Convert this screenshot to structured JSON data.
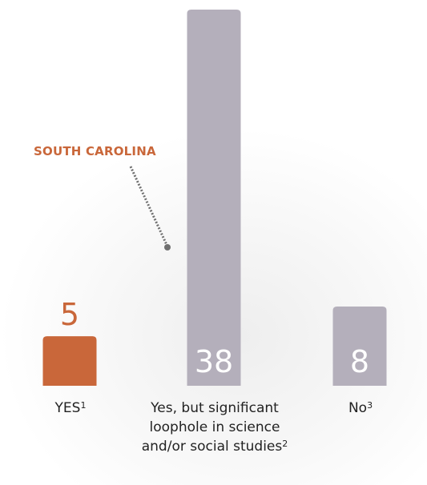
{
  "chart_data": {
    "type": "bar",
    "categories": [
      "YES",
      "Yes, but significant loophole in science and/or social studies",
      "No"
    ],
    "footnote_marks": [
      "1",
      "2",
      "3"
    ],
    "values": [
      5,
      38,
      8
    ],
    "bar_colors": [
      "#c9673a",
      "#b4afbb",
      "#b4afbb"
    ],
    "value_label_colors": [
      "#c9673a",
      "#ffffff",
      "#ffffff"
    ],
    "annotation": {
      "text": "SOUTH CAROLINA",
      "color": "#c9673a",
      "target_category": 1
    },
    "title": "",
    "xlabel": "",
    "ylabel": "",
    "ylim": [
      0,
      40
    ],
    "grid": false
  }
}
